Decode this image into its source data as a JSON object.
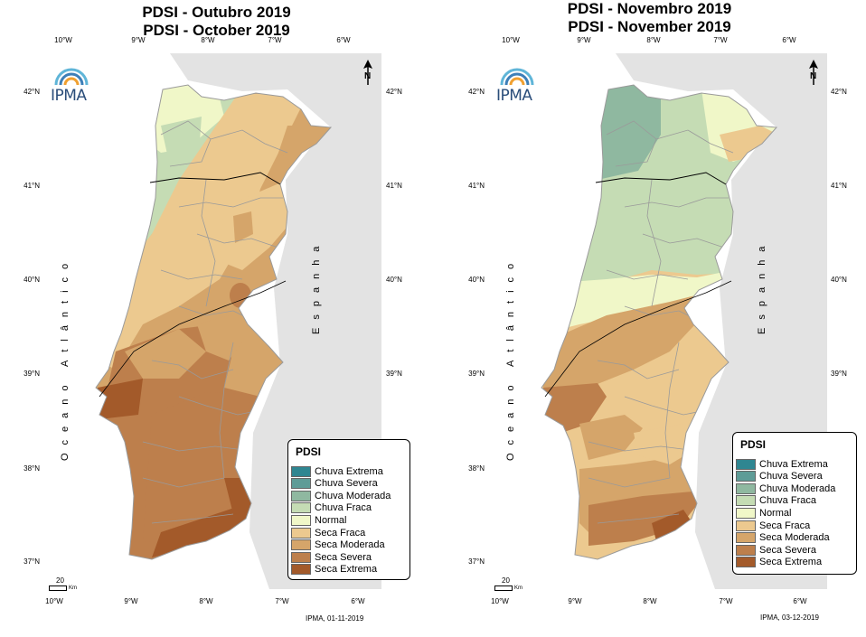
{
  "maps": [
    {
      "title_pt": "PDSI - Outubro 2019",
      "title_en": "PDSI - October 2019",
      "credit": "IPMA, 01-11-2019"
    },
    {
      "title_pt": "PDSI - Novembro 2019",
      "title_en": "PDSI - November 2019",
      "credit": "IPMA, 03-12-2019"
    }
  ],
  "longitude_labels": [
    "10°W",
    "9°W",
    "8°W",
    "7°W",
    "6°W"
  ],
  "latitude_labels": [
    "42°N",
    "41°N",
    "40°N",
    "39°N",
    "38°N",
    "37°N"
  ],
  "ocean_label": "Oceano Atlântico",
  "spain_label": "Espanha",
  "logo_text": "IPMA",
  "north_symbol": "N",
  "scale_value": "20",
  "scale_unit": "Km",
  "legend": {
    "title": "PDSI",
    "classes": [
      {
        "label": "Chuva Extrema",
        "color": "#2f8691"
      },
      {
        "label": "Chuva Severa",
        "color": "#5e9c97"
      },
      {
        "label": "Chuva Moderada",
        "color": "#8fb8a0"
      },
      {
        "label": "Chuva Fraca",
        "color": "#c5dcb4"
      },
      {
        "label": "Normal",
        "color": "#f0f7c8"
      },
      {
        "label": "Seca Fraca",
        "color": "#ecc98f"
      },
      {
        "label": "Seca Moderada",
        "color": "#d5a56a"
      },
      {
        "label": "Seca Severa",
        "color": "#bd7f4c"
      },
      {
        "label": "Seca Extrema",
        "color": "#a35a2a"
      }
    ]
  }
}
